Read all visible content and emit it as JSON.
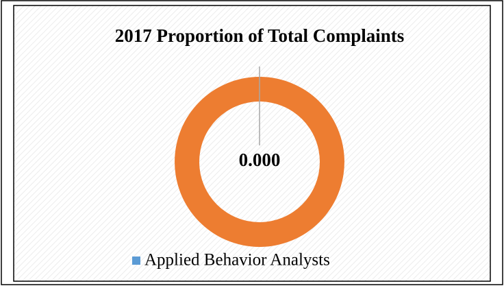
{
  "chart_data": {
    "type": "doughnut",
    "title": "2017 Proportion of Total Complaints",
    "categories": [
      "Applied Behavior Analysts",
      null
    ],
    "values": [
      0,
      1
    ],
    "value_labels": [
      "0.000",
      null
    ],
    "colors": [
      "#5b9bd5",
      "#ed7d31"
    ],
    "legend": "bottom"
  }
}
